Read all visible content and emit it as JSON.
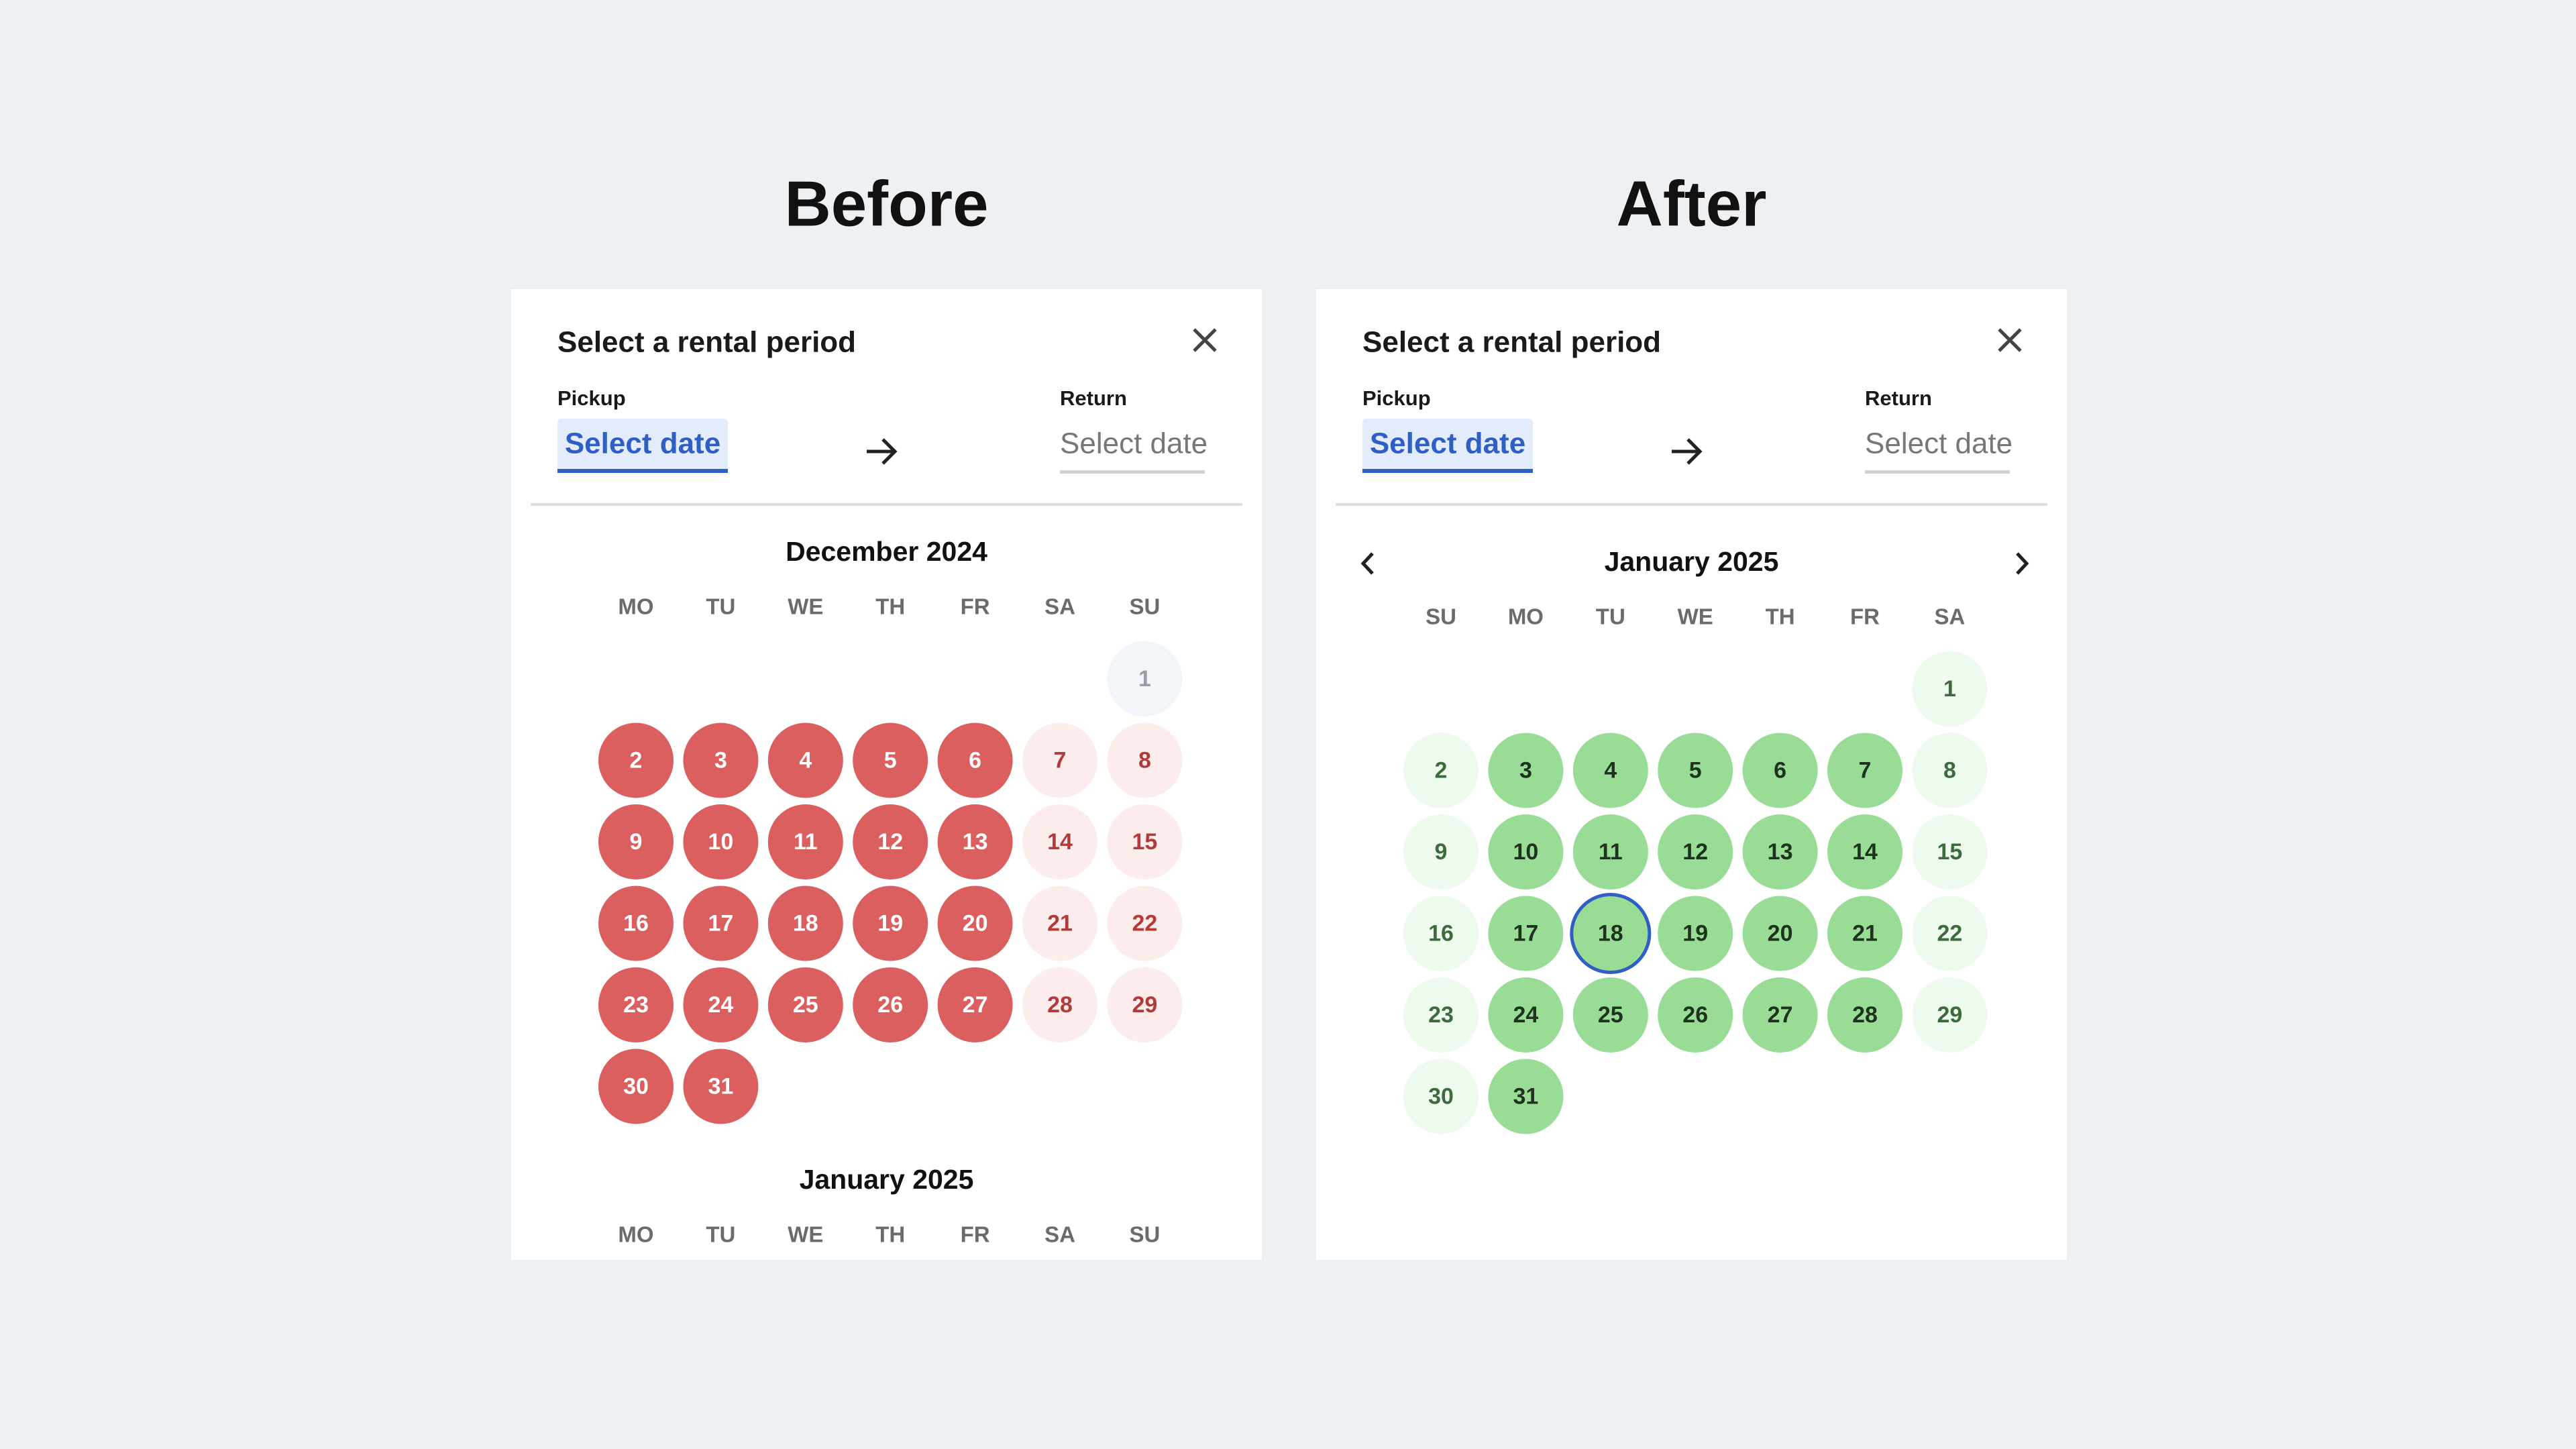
{
  "panels": [
    {
      "caption": "Before",
      "heading": "Select a rental period",
      "pickup_label": "Pickup",
      "pickup_value": "Select date",
      "return_label": "Return",
      "return_value": "Select date",
      "nav_arrows": false,
      "months": [
        {
          "name": "December 2024",
          "weekdays": [
            "MO",
            "TU",
            "WE",
            "TH",
            "FR",
            "SA",
            "SU"
          ],
          "days": [
            null,
            null,
            null,
            null,
            null,
            null,
            {
              "day": 1,
              "fill": "#f2f5f9",
              "ink": "#9a9ea6"
            },
            {
              "day": 2,
              "fill": "#dc5f5f",
              "ink": "#ffffff"
            },
            {
              "day": 3,
              "fill": "#dc5f5f",
              "ink": "#ffffff"
            },
            {
              "day": 4,
              "fill": "#dc5f5f",
              "ink": "#ffffff"
            },
            {
              "day": 5,
              "fill": "#dc5f5f",
              "ink": "#ffffff"
            },
            {
              "day": 6,
              "fill": "#dc5f5f",
              "ink": "#ffffff"
            },
            {
              "day": 7,
              "fill": "#fcecec",
              "ink": "#b33a3a"
            },
            {
              "day": 8,
              "fill": "#fcecec",
              "ink": "#b33a3a"
            },
            {
              "day": 9,
              "fill": "#dc5f5f",
              "ink": "#ffffff"
            },
            {
              "day": 10,
              "fill": "#dc5f5f",
              "ink": "#ffffff"
            },
            {
              "day": 11,
              "fill": "#dc5f5f",
              "ink": "#ffffff"
            },
            {
              "day": 12,
              "fill": "#dc5f5f",
              "ink": "#ffffff"
            },
            {
              "day": 13,
              "fill": "#dc5f5f",
              "ink": "#ffffff"
            },
            {
              "day": 14,
              "fill": "#fcecec",
              "ink": "#b33a3a"
            },
            {
              "day": 15,
              "fill": "#fcecec",
              "ink": "#b33a3a"
            },
            {
              "day": 16,
              "fill": "#dc5f5f",
              "ink": "#ffffff"
            },
            {
              "day": 17,
              "fill": "#dc5f5f",
              "ink": "#ffffff"
            },
            {
              "day": 18,
              "fill": "#dc5f5f",
              "ink": "#ffffff"
            },
            {
              "day": 19,
              "fill": "#dc5f5f",
              "ink": "#ffffff"
            },
            {
              "day": 20,
              "fill": "#dc5f5f",
              "ink": "#ffffff"
            },
            {
              "day": 21,
              "fill": "#fcecec",
              "ink": "#b33a3a"
            },
            {
              "day": 22,
              "fill": "#fcecec",
              "ink": "#b33a3a"
            },
            {
              "day": 23,
              "fill": "#dc5f5f",
              "ink": "#ffffff"
            },
            {
              "day": 24,
              "fill": "#dc5f5f",
              "ink": "#ffffff"
            },
            {
              "day": 25,
              "fill": "#dc5f5f",
              "ink": "#ffffff"
            },
            {
              "day": 26,
              "fill": "#dc5f5f",
              "ink": "#ffffff"
            },
            {
              "day": 27,
              "fill": "#dc5f5f",
              "ink": "#ffffff"
            },
            {
              "day": 28,
              "fill": "#fcecec",
              "ink": "#b33a3a"
            },
            {
              "day": 29,
              "fill": "#fcecec",
              "ink": "#b33a3a"
            },
            {
              "day": 30,
              "fill": "#dc5f5f",
              "ink": "#ffffff"
            },
            {
              "day": 31,
              "fill": "#dc5f5f",
              "ink": "#ffffff"
            }
          ]
        },
        {
          "name": "January 2025",
          "weekdays": [
            "MO",
            "TU",
            "WE",
            "TH",
            "FR",
            "SA",
            "SU"
          ],
          "days": []
        }
      ]
    },
    {
      "caption": "After",
      "heading": "Select a rental period",
      "pickup_label": "Pickup",
      "pickup_value": "Select date",
      "return_label": "Return",
      "return_value": "Select date",
      "nav_arrows": true,
      "months": [
        {
          "name": "January 2025",
          "weekdays": [
            "SU",
            "MO",
            "TU",
            "WE",
            "TH",
            "FR",
            "SA"
          ],
          "days": [
            null,
            null,
            null,
            null,
            null,
            null,
            {
              "day": 1,
              "fill": "#eefaee",
              "ink": "#3d6b3d"
            },
            {
              "day": 2,
              "fill": "#eefaee",
              "ink": "#3d6b3d"
            },
            {
              "day": 3,
              "fill": "#98dc95",
              "ink": "#1e331e"
            },
            {
              "day": 4,
              "fill": "#98dc95",
              "ink": "#1e331e"
            },
            {
              "day": 5,
              "fill": "#98dc95",
              "ink": "#1e331e"
            },
            {
              "day": 6,
              "fill": "#98dc95",
              "ink": "#1e331e"
            },
            {
              "day": 7,
              "fill": "#98dc95",
              "ink": "#1e331e"
            },
            {
              "day": 8,
              "fill": "#eefaee",
              "ink": "#3d6b3d"
            },
            {
              "day": 9,
              "fill": "#eefaee",
              "ink": "#3d6b3d"
            },
            {
              "day": 10,
              "fill": "#98dc95",
              "ink": "#1e331e"
            },
            {
              "day": 11,
              "fill": "#98dc95",
              "ink": "#1e331e"
            },
            {
              "day": 12,
              "fill": "#98dc95",
              "ink": "#1e331e"
            },
            {
              "day": 13,
              "fill": "#98dc95",
              "ink": "#1e331e"
            },
            {
              "day": 14,
              "fill": "#98dc95",
              "ink": "#1e331e"
            },
            {
              "day": 15,
              "fill": "#eefaee",
              "ink": "#3d6b3d"
            },
            {
              "day": 16,
              "fill": "#eefaee",
              "ink": "#3d6b3d"
            },
            {
              "day": 17,
              "fill": "#98dc95",
              "ink": "#1e331e"
            },
            {
              "day": 18,
              "fill": "#98dc95",
              "ink": "#1e331e",
              "outline": "#2f5fc4"
            },
            {
              "day": 19,
              "fill": "#98dc95",
              "ink": "#1e331e"
            },
            {
              "day": 20,
              "fill": "#98dc95",
              "ink": "#1e331e"
            },
            {
              "day": 21,
              "fill": "#98dc95",
              "ink": "#1e331e"
            },
            {
              "day": 22,
              "fill": "#eefaee",
              "ink": "#3d6b3d"
            },
            {
              "day": 23,
              "fill": "#eefaee",
              "ink": "#3d6b3d"
            },
            {
              "day": 24,
              "fill": "#98dc95",
              "ink": "#1e331e"
            },
            {
              "day": 25,
              "fill": "#98dc95",
              "ink": "#1e331e"
            },
            {
              "day": 26,
              "fill": "#98dc95",
              "ink": "#1e331e"
            },
            {
              "day": 27,
              "fill": "#98dc95",
              "ink": "#1e331e"
            },
            {
              "day": 28,
              "fill": "#98dc95",
              "ink": "#1e331e"
            },
            {
              "day": 29,
              "fill": "#eefaee",
              "ink": "#3d6b3d"
            },
            {
              "day": 30,
              "fill": "#eefaee",
              "ink": "#3d6b3d"
            },
            {
              "day": 31,
              "fill": "#98dc95",
              "ink": "#1e331e"
            }
          ]
        }
      ]
    }
  ]
}
